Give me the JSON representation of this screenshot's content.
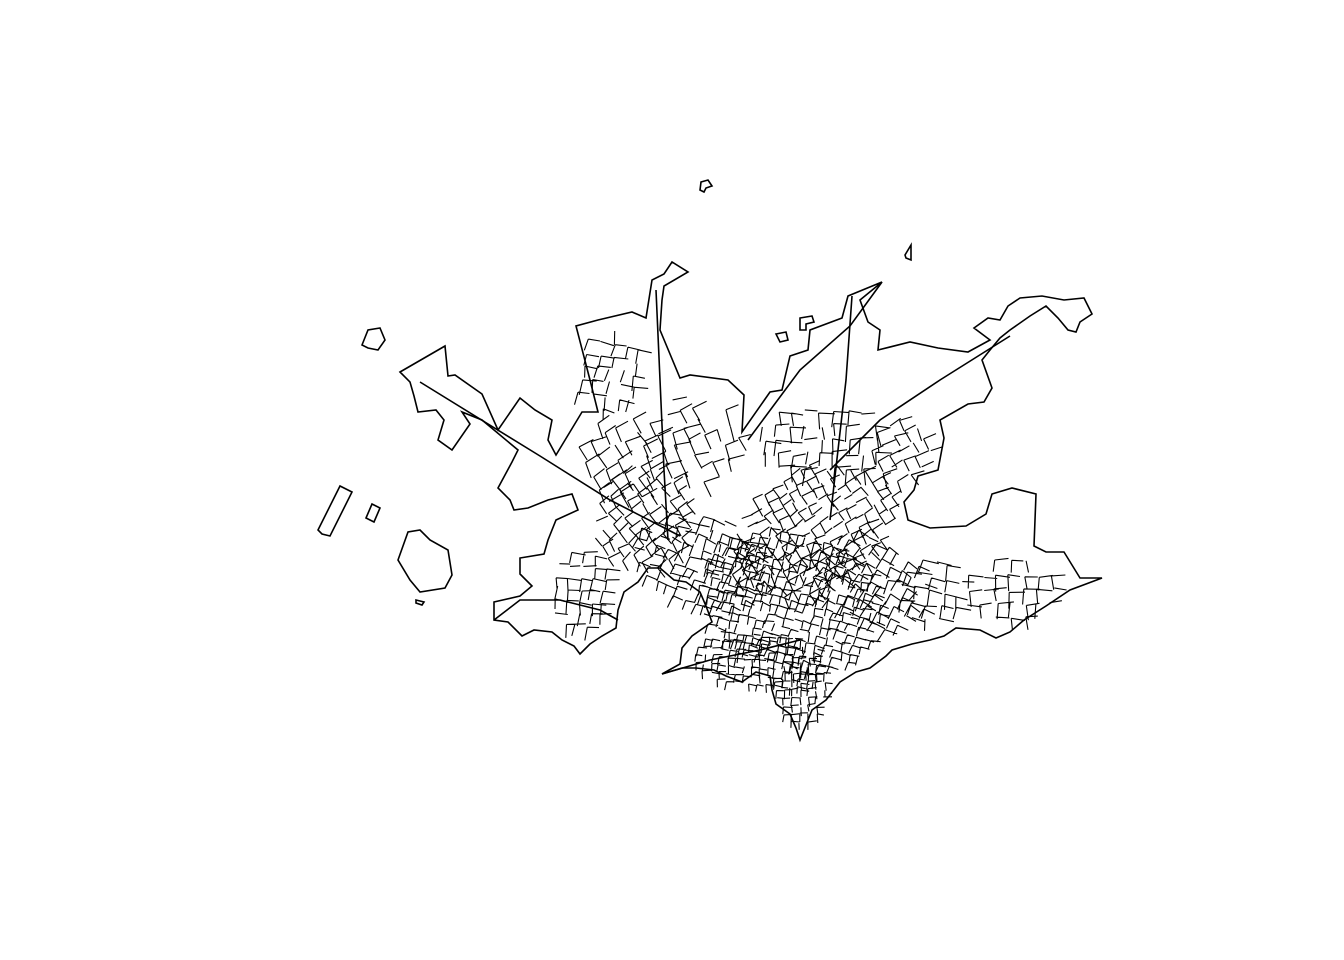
{
  "figure": {
    "type": "polygon-map",
    "background_color": "#ffffff",
    "stroke_color": "#000000",
    "fill": "none",
    "title": "",
    "legend": "none",
    "axes": "none",
    "grid": false
  }
}
